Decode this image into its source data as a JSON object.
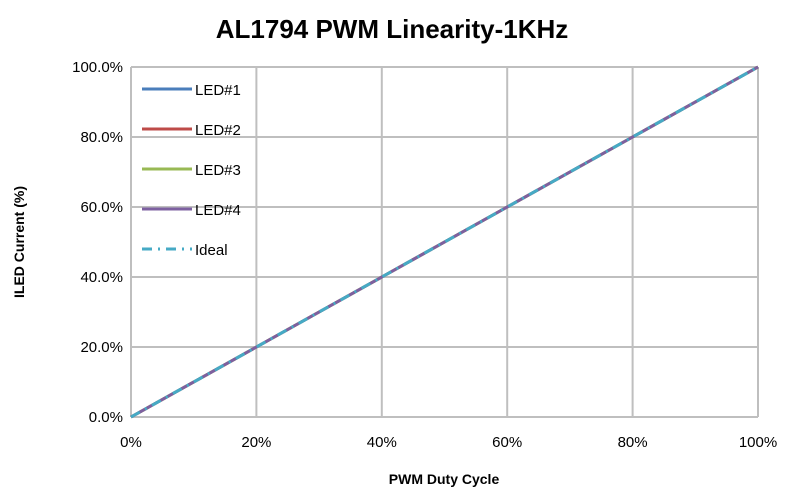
{
  "chart_data": {
    "type": "line",
    "title": "AL1794 PWM Linearity-1KHz",
    "xlabel": "PWM Duty Cycle",
    "ylabel": "ILED Current (%)",
    "xlim": [
      0,
      100
    ],
    "ylim": [
      0,
      100
    ],
    "x_ticks": [
      "0%",
      "20%",
      "40%",
      "60%",
      "80%",
      "100%"
    ],
    "y_ticks": [
      "0.0%",
      "20.0%",
      "40.0%",
      "60.0%",
      "80.0%",
      "100.0%"
    ],
    "grid": true,
    "legend_position": "top-left",
    "x": [
      0,
      10,
      20,
      30,
      40,
      50,
      60,
      70,
      80,
      90,
      100
    ],
    "series": [
      {
        "name": "LED#1",
        "color": "#4a7ebb",
        "dash": "solid",
        "values": [
          0,
          10,
          20,
          30,
          40,
          50,
          60,
          70,
          80,
          90,
          100
        ]
      },
      {
        "name": "LED#2",
        "color": "#be4b48",
        "dash": "solid",
        "values": [
          0,
          10,
          20,
          30,
          40,
          50,
          60,
          70,
          80,
          90,
          100
        ]
      },
      {
        "name": "LED#3",
        "color": "#98b954",
        "dash": "solid",
        "values": [
          0,
          10,
          20,
          30,
          40,
          50,
          60,
          70,
          80,
          90,
          100
        ]
      },
      {
        "name": "LED#4",
        "color": "#7d60a0",
        "dash": "solid",
        "values": [
          0,
          10,
          20,
          30,
          40,
          50,
          60,
          70,
          80,
          90,
          100
        ]
      },
      {
        "name": "Ideal",
        "color": "#46aac5",
        "dash": "dashdot",
        "values": [
          0,
          10,
          20,
          30,
          40,
          50,
          60,
          70,
          80,
          90,
          100
        ]
      }
    ]
  }
}
